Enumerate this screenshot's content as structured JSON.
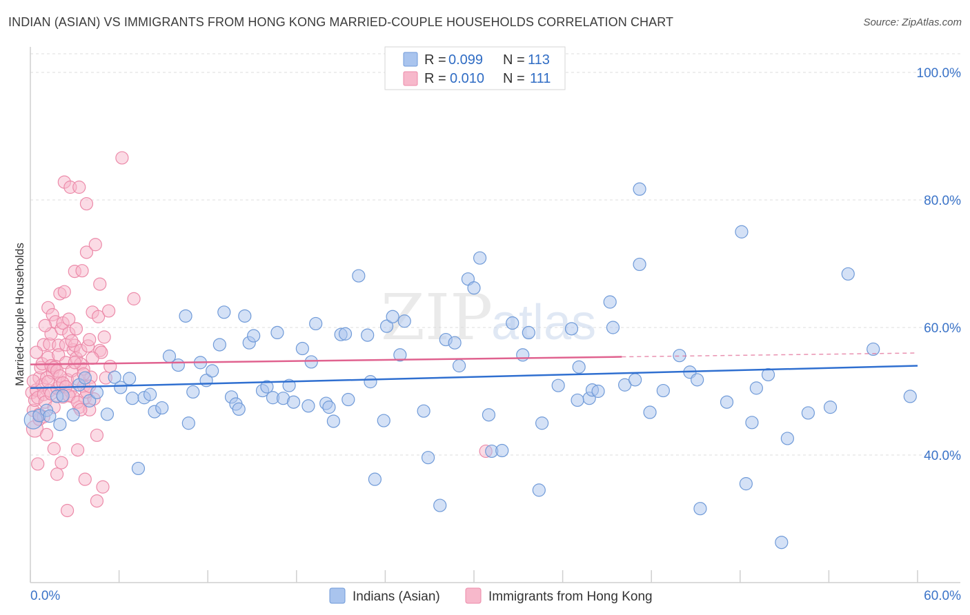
{
  "title": "INDIAN (ASIAN) VS IMMIGRANTS FROM HONG KONG MARRIED-COUPLE HOUSEHOLDS CORRELATION CHART",
  "source": "Source: ZipAtlas.com",
  "watermark": {
    "zip": "ZIP",
    "atlas": "atlas"
  },
  "colors": {
    "blue_fill": "#a9c4ee",
    "blue_stroke": "#6f9ad8",
    "blue_line": "#2f6fd0",
    "pink_fill": "#f7b8cb",
    "pink_stroke": "#ec8aa9",
    "pink_line": "#e0628f",
    "grid": "#dddddd",
    "tick_text": "#3a73c8"
  },
  "legend": {
    "blue": {
      "r_label": "R =",
      "r_value": "0.099",
      "n_label": "N =",
      "n_value": "113"
    },
    "pink": {
      "r_label": "R =",
      "r_value": "0.010",
      "n_label": "N =",
      "n_value": "111"
    }
  },
  "chart_data": {
    "type": "scatter",
    "title": "INDIAN (ASIAN) VS IMMIGRANTS FROM HONG KONG MARRIED-COUPLE HOUSEHOLDS CORRELATION CHART",
    "xlabel": "",
    "ylabel": "Married-couple Households",
    "xlim": [
      0,
      60
    ],
    "ylim": [
      20,
      104
    ],
    "x_tick_labels": [
      "0.0%",
      "60.0%"
    ],
    "y_ticks": [
      40,
      60,
      80,
      100
    ],
    "y_tick_labels": [
      "40.0%",
      "60.0%",
      "80.0%",
      "100.0%"
    ],
    "grid": true,
    "legend_position": "top-center",
    "series": [
      {
        "name": "Indians (Asian)",
        "color": "#a9c4ee",
        "trend": {
          "x": [
            0,
            60
          ],
          "y": [
            50.5,
            54.0
          ],
          "dashed_from": null
        },
        "points": [
          [
            0.2,
            45.5
          ],
          [
            0.6,
            46.2
          ],
          [
            1.1,
            47.0
          ],
          [
            1.3,
            46.1
          ],
          [
            1.8,
            49.2
          ],
          [
            2.0,
            44.8
          ],
          [
            2.2,
            49.3
          ],
          [
            2.9,
            46.3
          ],
          [
            3.3,
            51.0
          ],
          [
            3.7,
            52.1
          ],
          [
            4.0,
            48.5
          ],
          [
            4.5,
            49.8
          ],
          [
            5.2,
            46.4
          ],
          [
            5.7,
            52.2
          ],
          [
            6.1,
            50.6
          ],
          [
            6.7,
            52.0
          ],
          [
            6.9,
            48.9
          ],
          [
            7.3,
            37.9
          ],
          [
            7.7,
            49.0
          ],
          [
            8.1,
            49.5
          ],
          [
            8.4,
            46.8
          ],
          [
            8.9,
            47.4
          ],
          [
            9.4,
            55.5
          ],
          [
            10.0,
            54.1
          ],
          [
            10.5,
            61.8
          ],
          [
            10.7,
            45.0
          ],
          [
            11.0,
            49.9
          ],
          [
            11.5,
            54.5
          ],
          [
            11.9,
            51.7
          ],
          [
            12.3,
            53.2
          ],
          [
            12.8,
            57.3
          ],
          [
            13.1,
            62.4
          ],
          [
            13.6,
            49.1
          ],
          [
            13.9,
            48.0
          ],
          [
            14.1,
            47.2
          ],
          [
            14.5,
            61.8
          ],
          [
            14.8,
            57.6
          ],
          [
            15.1,
            58.7
          ],
          [
            15.7,
            50.1
          ],
          [
            16.0,
            50.7
          ],
          [
            16.4,
            49.0
          ],
          [
            16.7,
            59.2
          ],
          [
            17.1,
            48.9
          ],
          [
            17.5,
            50.9
          ],
          [
            17.8,
            48.3
          ],
          [
            18.4,
            56.7
          ],
          [
            18.8,
            47.7
          ],
          [
            19.0,
            54.6
          ],
          [
            19.3,
            60.6
          ],
          [
            20.0,
            48.1
          ],
          [
            20.2,
            47.5
          ],
          [
            20.5,
            45.3
          ],
          [
            21.0,
            58.9
          ],
          [
            21.3,
            59.0
          ],
          [
            21.5,
            48.7
          ],
          [
            22.2,
            68.1
          ],
          [
            22.8,
            58.8
          ],
          [
            23.0,
            51.5
          ],
          [
            23.3,
            36.2
          ],
          [
            23.9,
            45.4
          ],
          [
            24.1,
            60.2
          ],
          [
            24.5,
            61.7
          ],
          [
            25.0,
            55.7
          ],
          [
            25.3,
            61.0
          ],
          [
            26.6,
            46.9
          ],
          [
            26.9,
            39.6
          ],
          [
            27.7,
            32.1
          ],
          [
            28.1,
            58.1
          ],
          [
            28.7,
            57.6
          ],
          [
            29.0,
            54.0
          ],
          [
            29.6,
            67.6
          ],
          [
            30.0,
            66.2
          ],
          [
            30.4,
            70.9
          ],
          [
            31.0,
            46.3
          ],
          [
            31.2,
            40.6
          ],
          [
            31.9,
            40.7
          ],
          [
            32.6,
            60.7
          ],
          [
            33.3,
            55.7
          ],
          [
            33.7,
            59.2
          ],
          [
            34.4,
            34.5
          ],
          [
            34.6,
            45.0
          ],
          [
            35.7,
            50.9
          ],
          [
            36.6,
            59.8
          ],
          [
            37.1,
            53.8
          ],
          [
            37.8,
            48.9
          ],
          [
            38.0,
            50.2
          ],
          [
            38.4,
            50.0
          ],
          [
            39.2,
            64.0
          ],
          [
            39.4,
            60.0
          ],
          [
            40.2,
            51.0
          ],
          [
            40.9,
            51.8
          ],
          [
            41.2,
            81.7
          ],
          [
            41.2,
            69.9
          ],
          [
            41.9,
            46.7
          ],
          [
            42.8,
            50.1
          ],
          [
            43.9,
            55.6
          ],
          [
            44.6,
            53.0
          ],
          [
            45.1,
            51.8
          ],
          [
            45.3,
            31.6
          ],
          [
            47.1,
            48.3
          ],
          [
            48.1,
            75.0
          ],
          [
            48.4,
            35.5
          ],
          [
            48.8,
            45.1
          ],
          [
            49.1,
            50.5
          ],
          [
            49.9,
            52.6
          ],
          [
            50.8,
            26.3
          ],
          [
            51.2,
            42.6
          ],
          [
            52.6,
            46.6
          ],
          [
            54.1,
            47.5
          ],
          [
            55.3,
            68.4
          ],
          [
            57.0,
            56.6
          ],
          [
            59.5,
            49.2
          ],
          [
            37.0,
            48.6
          ]
        ]
      },
      {
        "name": "Immigrants from Hong Kong",
        "color": "#f7b8cb",
        "trend": {
          "x": [
            0,
            40,
            60
          ],
          "y": [
            54.2,
            55.4,
            56.0
          ],
          "dashed_from": 40
        },
        "points": [
          [
            0.1,
            49.8
          ],
          [
            0.2,
            47.0
          ],
          [
            0.3,
            48.6
          ],
          [
            0.3,
            44.1
          ],
          [
            0.4,
            50.2
          ],
          [
            0.5,
            49.0
          ],
          [
            0.5,
            38.6
          ],
          [
            0.6,
            52.1
          ],
          [
            0.6,
            45.6
          ],
          [
            0.7,
            53.7
          ],
          [
            0.8,
            51.0
          ],
          [
            0.8,
            54.3
          ],
          [
            0.9,
            57.3
          ],
          [
            0.9,
            49.5
          ],
          [
            1.0,
            48.3
          ],
          [
            1.1,
            52.1
          ],
          [
            1.1,
            43.2
          ],
          [
            1.2,
            55.3
          ],
          [
            1.2,
            63.1
          ],
          [
            1.3,
            50.1
          ],
          [
            1.3,
            57.4
          ],
          [
            1.4,
            59.0
          ],
          [
            1.4,
            49.6
          ],
          [
            1.5,
            62.0
          ],
          [
            1.5,
            52.9
          ],
          [
            1.6,
            41.0
          ],
          [
            1.6,
            47.5
          ],
          [
            1.7,
            60.9
          ],
          [
            1.7,
            53.9
          ],
          [
            1.8,
            50.5
          ],
          [
            1.8,
            37.0
          ],
          [
            1.9,
            57.2
          ],
          [
            1.9,
            55.7
          ],
          [
            2.0,
            65.3
          ],
          [
            2.0,
            51.2
          ],
          [
            2.1,
            38.8
          ],
          [
            2.1,
            59.8
          ],
          [
            2.2,
            60.7
          ],
          [
            2.2,
            49.1
          ],
          [
            2.3,
            82.8
          ],
          [
            2.3,
            65.6
          ],
          [
            2.4,
            54.5
          ],
          [
            2.4,
            57.3
          ],
          [
            2.5,
            51.8
          ],
          [
            2.5,
            31.3
          ],
          [
            2.6,
            59.1
          ],
          [
            2.6,
            61.3
          ],
          [
            2.7,
            50.0
          ],
          [
            2.7,
            82.0
          ],
          [
            2.8,
            53.2
          ],
          [
            2.9,
            56.5
          ],
          [
            2.9,
            49.1
          ],
          [
            3.0,
            57.2
          ],
          [
            3.0,
            68.8
          ],
          [
            3.1,
            59.8
          ],
          [
            3.1,
            55.2
          ],
          [
            3.2,
            51.9
          ],
          [
            3.2,
            40.8
          ],
          [
            3.3,
            47.5
          ],
          [
            3.3,
            82.0
          ],
          [
            3.4,
            54.3
          ],
          [
            3.4,
            56.4
          ],
          [
            3.5,
            68.9
          ],
          [
            3.6,
            53.5
          ],
          [
            3.6,
            50.8
          ],
          [
            3.7,
            49.0
          ],
          [
            3.7,
            36.2
          ],
          [
            3.8,
            79.4
          ],
          [
            3.8,
            71.8
          ],
          [
            3.9,
            57.1
          ],
          [
            4.0,
            58.1
          ],
          [
            4.0,
            47.1
          ],
          [
            4.1,
            52.2
          ],
          [
            4.2,
            62.4
          ],
          [
            4.3,
            48.8
          ],
          [
            4.4,
            73.0
          ],
          [
            4.5,
            43.1
          ],
          [
            4.5,
            32.8
          ],
          [
            4.6,
            61.7
          ],
          [
            4.7,
            56.4
          ],
          [
            4.7,
            66.8
          ],
          [
            4.8,
            56.1
          ],
          [
            4.9,
            35.0
          ],
          [
            5.0,
            58.5
          ],
          [
            5.1,
            52.1
          ],
          [
            5.3,
            62.6
          ],
          [
            5.4,
            53.9
          ],
          [
            6.2,
            86.6
          ],
          [
            7.0,
            64.5
          ],
          [
            0.2,
            51.6
          ],
          [
            0.4,
            56.1
          ],
          [
            0.6,
            46.4
          ],
          [
            0.9,
            46.0
          ],
          [
            1.0,
            60.3
          ],
          [
            1.2,
            51.5
          ],
          [
            1.4,
            54.0
          ],
          [
            1.6,
            53.7
          ],
          [
            1.8,
            53.2
          ],
          [
            2.0,
            52.4
          ],
          [
            2.2,
            51.3
          ],
          [
            2.4,
            50.7
          ],
          [
            2.6,
            49.3
          ],
          [
            2.8,
            57.9
          ],
          [
            3.0,
            54.5
          ],
          [
            3.2,
            48.3
          ],
          [
            3.4,
            47.1
          ],
          [
            3.6,
            52.7
          ],
          [
            3.8,
            49.9
          ],
          [
            4.0,
            50.8
          ],
          [
            4.2,
            55.2
          ],
          [
            30.8,
            40.6
          ]
        ]
      }
    ],
    "series_legend": [
      "Indians (Asian)",
      "Immigrants from Hong Kong"
    ]
  }
}
